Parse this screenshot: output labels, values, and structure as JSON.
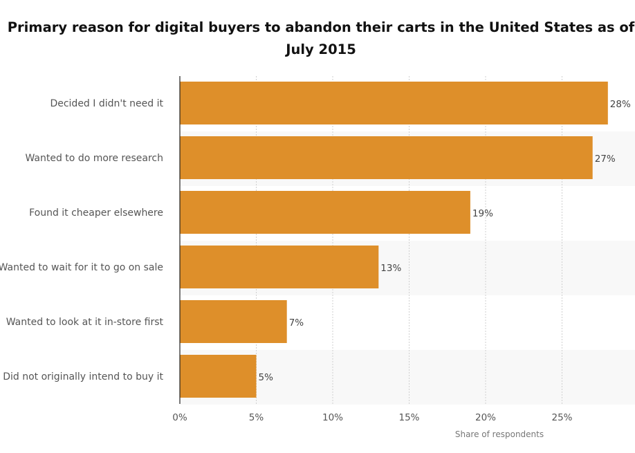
{
  "chart_data": {
    "type": "bar",
    "orientation": "horizontal",
    "title": "Primary reason for digital buyers to abandon their carts in the United States as of July 2015",
    "categories": [
      "Decided I didn't need it",
      "Wanted to do more research",
      "Found it cheaper elsewhere",
      "Wanted to wait for it to go on sale",
      "Wanted to look at it in-store first",
      "Did not originally intend to buy it"
    ],
    "values": [
      28,
      27,
      19,
      13,
      7,
      5
    ],
    "value_labels": [
      "28%",
      "27%",
      "19%",
      "13%",
      "7%",
      "5%"
    ],
    "xlabel": "Share of respondents",
    "ylabel": "",
    "xlim": [
      0,
      30
    ],
    "xticks": [
      0,
      5,
      10,
      15,
      20,
      25
    ],
    "xtick_labels": [
      "0%",
      "5%",
      "10%",
      "15%",
      "20%",
      "25%"
    ],
    "grid": true,
    "bar_color": "#de8f2a",
    "band_color": "#f8f8f8"
  }
}
